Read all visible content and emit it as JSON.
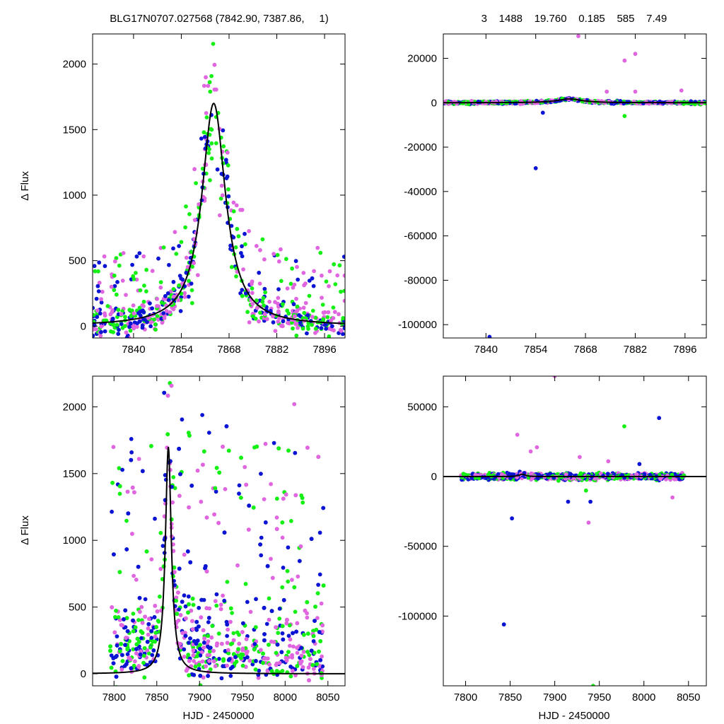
{
  "header": {
    "left": "BLG17N0707.027568 (7842.90, 7387.86,     1)",
    "right": "3    1488    19.760    0.185    585    7.49"
  },
  "colors": {
    "magenta": "#e066e0",
    "blue": "#0a14d2",
    "green": "#14f014",
    "model": "#000000"
  },
  "chart_data": [
    {
      "type": "scatter",
      "panel": "top-left",
      "xlabel": "",
      "ylabel": "Δ Flux",
      "xlim": [
        7828,
        7902
      ],
      "ylim": [
        -90,
        2230
      ],
      "xticks": [
        7840,
        7854,
        7868,
        7882,
        7896
      ],
      "yticks": [
        0,
        500,
        1000,
        1500,
        2000
      ],
      "model": {
        "t0": 7863.5,
        "peak": 1700,
        "width": 4.2
      }
    },
    {
      "type": "scatter",
      "panel": "top-right",
      "xlabel": "",
      "ylabel": "",
      "xlim": [
        7828,
        7902
      ],
      "ylim": [
        -106000,
        31000
      ],
      "xticks": [
        7840,
        7854,
        7868,
        7882,
        7896
      ],
      "yticks": [
        -100000,
        -80000,
        -60000,
        -40000,
        -20000,
        0,
        20000
      ],
      "model": {
        "t0": 7863.5,
        "peak": 1700,
        "width": 4.2
      },
      "outliers": [
        {
          "x": 7866,
          "y": 30000,
          "c": "magenta"
        },
        {
          "x": 7882,
          "y": 22000,
          "c": "magenta"
        },
        {
          "x": 7879,
          "y": 19000,
          "c": "magenta"
        },
        {
          "x": 7854,
          "y": -29500,
          "c": "blue"
        },
        {
          "x": 7841,
          "y": -105500,
          "c": "blue"
        },
        {
          "x": 7879,
          "y": -6000,
          "c": "green"
        },
        {
          "x": 7856,
          "y": -4500,
          "c": "blue"
        },
        {
          "x": 7895,
          "y": 5500,
          "c": "magenta"
        },
        {
          "x": 7882,
          "y": 5000,
          "c": "magenta"
        },
        {
          "x": 7874,
          "y": 5000,
          "c": "magenta"
        }
      ]
    },
    {
      "type": "scatter",
      "panel": "bottom-left",
      "xlabel": "HJD - 2450000",
      "ylabel": "Δ Flux",
      "xlim": [
        7775,
        8070
      ],
      "ylim": [
        -90,
        2230
      ],
      "xticks": [
        7800,
        7850,
        7900,
        7950,
        8000,
        8050
      ],
      "yticks": [
        0,
        500,
        1000,
        1500,
        2000
      ],
      "model": {
        "t0": 7863.5,
        "peak": 1700,
        "width": 4.2
      }
    },
    {
      "type": "scatter",
      "panel": "bottom-right",
      "xlabel": "HJD - 2450000",
      "ylabel": "",
      "xlim": [
        7775,
        8070
      ],
      "ylim": [
        -150000,
        72000
      ],
      "xticks": [
        7800,
        7850,
        7900,
        7950,
        8000,
        8050
      ],
      "yticks": [
        -100000,
        -50000,
        0,
        50000
      ],
      "model": {
        "t0": 7863.5,
        "peak": 1700,
        "width": 4.2
      },
      "outliers": [
        {
          "x": 7900,
          "y": 72000,
          "c": "magenta"
        },
        {
          "x": 8017,
          "y": 42000,
          "c": "blue"
        },
        {
          "x": 7978,
          "y": 36000,
          "c": "green"
        },
        {
          "x": 7858,
          "y": 30000,
          "c": "magenta"
        },
        {
          "x": 7880,
          "y": 21000,
          "c": "magenta"
        },
        {
          "x": 7873,
          "y": 18000,
          "c": "magenta"
        },
        {
          "x": 7928,
          "y": 14000,
          "c": "magenta"
        },
        {
          "x": 7960,
          "y": 11000,
          "c": "magenta"
        },
        {
          "x": 7995,
          "y": 9000,
          "c": "blue"
        },
        {
          "x": 7915,
          "y": -18000,
          "c": "blue"
        },
        {
          "x": 7940,
          "y": -18000,
          "c": "blue"
        },
        {
          "x": 8032,
          "y": -15000,
          "c": "magenta"
        },
        {
          "x": 7935,
          "y": -10000,
          "c": "green"
        },
        {
          "x": 7852,
          "y": -30000,
          "c": "blue"
        },
        {
          "x": 7938,
          "y": -33000,
          "c": "magenta"
        },
        {
          "x": 7843,
          "y": -106000,
          "c": "blue"
        },
        {
          "x": 7943,
          "y": -150000,
          "c": "green"
        }
      ]
    }
  ]
}
